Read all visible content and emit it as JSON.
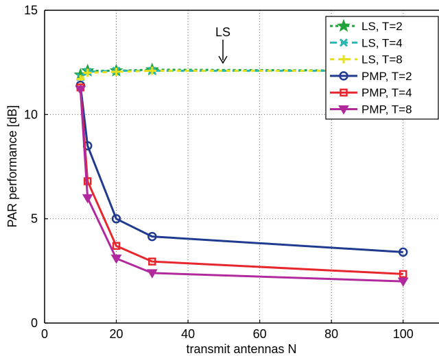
{
  "chart_data": {
    "type": "line",
    "title": "",
    "xlabel": "transmit antennas N",
    "ylabel": "PAR performance [dB]",
    "xlim": [
      0,
      110
    ],
    "ylim": [
      0,
      15
    ],
    "xticks": [
      0,
      20,
      40,
      60,
      80,
      100
    ],
    "yticks": [
      0,
      5,
      10,
      15
    ],
    "grid": true,
    "legend_position": "top-right",
    "annotation": {
      "text": "LS",
      "arrow_to": [
        50,
        12.1
      ]
    },
    "series": [
      {
        "name": "LS, T=2",
        "x": [
          10,
          12,
          20,
          30,
          100
        ],
        "y": [
          11.9,
          12.1,
          12.1,
          12.15,
          12.1
        ],
        "color": "#1fa33a",
        "dash": "4,4",
        "marker": "star"
      },
      {
        "name": "LS, T=4",
        "x": [
          10,
          12,
          20,
          30,
          100
        ],
        "y": [
          11.8,
          12.05,
          12.1,
          12.1,
          12.1
        ],
        "color": "#2bb5b0",
        "dash": "10,6",
        "marker": "x"
      },
      {
        "name": "LS, T=8",
        "x": [
          10,
          12,
          20,
          30,
          100
        ],
        "y": [
          11.7,
          12.0,
          12.05,
          12.1,
          12.1
        ],
        "color": "#e6e01e",
        "dash": "6,6",
        "marker": "plus"
      },
      {
        "name": "PMP, T=2",
        "x": [
          10,
          12,
          20,
          30,
          100
        ],
        "y": [
          11.4,
          8.5,
          5.0,
          4.15,
          3.4
        ],
        "color": "#1f3a8f",
        "dash": "",
        "marker": "circle"
      },
      {
        "name": "PMP, T=4",
        "x": [
          10,
          12,
          20,
          30,
          100
        ],
        "y": [
          11.3,
          6.8,
          3.7,
          2.95,
          2.35
        ],
        "color": "#e8262e",
        "dash": "",
        "marker": "square"
      },
      {
        "name": "PMP, T=8",
        "x": [
          10,
          12,
          20,
          30,
          100
        ],
        "y": [
          11.2,
          6.0,
          3.1,
          2.4,
          2.0
        ],
        "color": "#b02a9e",
        "dash": "",
        "marker": "triangle-down"
      }
    ]
  }
}
